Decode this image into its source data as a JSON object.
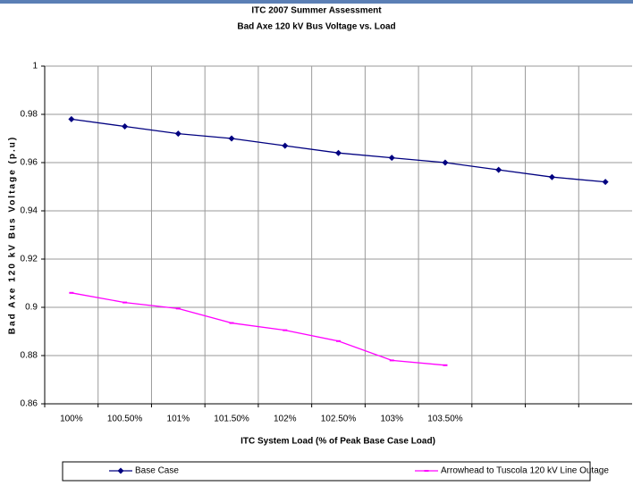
{
  "chart_data": {
    "type": "line",
    "title": "ITC 2007 Summer Assessment",
    "subtitle": "Bad Axe 120 kV Bus Voltage vs. Load",
    "x_label": "ITC System Load (% of Peak Base Case Load)",
    "y_label": "Bad Axe 120 kV Bus Voltage (p.u)",
    "categories": [
      "100%",
      "100.50%",
      "101%",
      "101.50%",
      "102%",
      "102.50%",
      "103%",
      "103.50%",
      null,
      null,
      null
    ],
    "series": [
      {
        "name": "Base Case",
        "color": "#000080",
        "values": [
          0.978,
          0.975,
          0.972,
          0.97,
          0.967,
          0.964,
          0.962,
          0.96,
          0.957,
          0.954,
          0.952
        ]
      },
      {
        "name": "Arrowhead to Tuscola 120 kV Line Outage",
        "color": "#ff00ff",
        "values": [
          0.906,
          0.902,
          0.8995,
          0.8935,
          0.8905,
          0.886,
          0.878,
          0.876,
          null,
          null,
          null
        ]
      }
    ],
    "ylim": [
      0.86,
      1
    ],
    "yticks": [
      0.86,
      0.88,
      0.9,
      0.92,
      0.94,
      0.96,
      0.98,
      1
    ],
    "grid": true,
    "legend": "bottom"
  }
}
